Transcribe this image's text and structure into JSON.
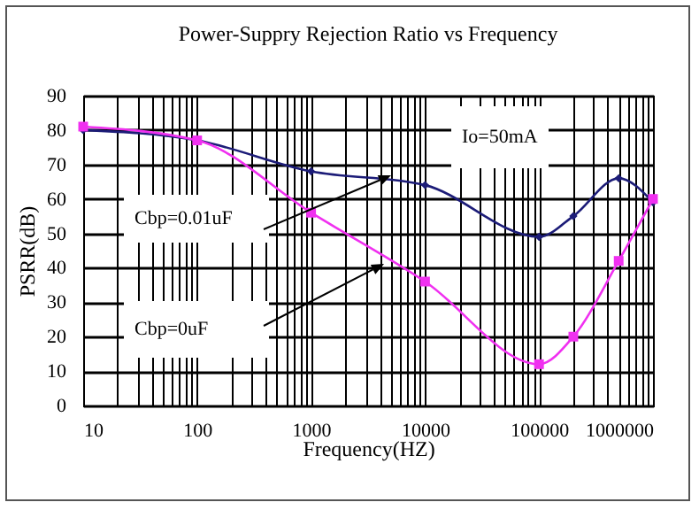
{
  "chart_data": {
    "type": "line",
    "title": "Power-Suppry Rejection Ratio vs Frequency",
    "xlabel": "Frequency(HZ)",
    "ylabel": "PSRR(dB)",
    "x": [
      10,
      100,
      1000,
      10000,
      100000,
      200000,
      500000,
      1000000
    ],
    "series": [
      {
        "color": "#1c1c78",
        "marker": "diamond",
        "values": [
          80,
          77,
          68,
          64,
          49,
          55,
          66,
          59
        ]
      },
      {
        "color": "#f030f0",
        "marker": "square",
        "values": [
          81,
          77,
          56,
          36,
          12,
          20,
          42,
          60
        ]
      }
    ],
    "xlim": [
      10,
      1000000
    ],
    "xticks": [
      10,
      {
        "value": 20,
        "label": null
      },
      {
        "value": 30,
        "label": null
      },
      {
        "value": 40,
        "label": null
      },
      {
        "value": 50,
        "label": null
      },
      {
        "value": 60,
        "label": null
      },
      {
        "value": 70,
        "label": null
      },
      {
        "value": 80,
        "label": null
      },
      {
        "value": 90,
        "label": null
      },
      100,
      {
        "value": 200,
        "label": null
      },
      {
        "value": 300,
        "label": null
      },
      {
        "value": 400,
        "label": null
      },
      {
        "value": 500,
        "label": null
      },
      {
        "value": 600,
        "label": null
      },
      {
        "value": 700,
        "label": null
      },
      {
        "value": 800,
        "label": null
      },
      {
        "value": 900,
        "label": null
      },
      1000,
      {
        "value": 2000,
        "label": null
      },
      {
        "value": 3000,
        "label": null
      },
      {
        "value": 4000,
        "label": null
      },
      {
        "value": 5000,
        "label": null
      },
      {
        "value": 6000,
        "label": null
      },
      {
        "value": 7000,
        "label": null
      },
      {
        "value": 8000,
        "label": null
      },
      {
        "value": 9000,
        "label": null
      },
      10000,
      {
        "value": 20000,
        "label": null
      },
      {
        "value": 30000,
        "label": null
      },
      {
        "value": 40000,
        "label": null
      },
      {
        "value": 50000,
        "label": null
      },
      {
        "value": 60000,
        "label": null
      },
      {
        "value": 70000,
        "label": null
      },
      {
        "value": 80000,
        "label": null
      },
      {
        "value": 90000,
        "label": null
      },
      100000,
      {
        "value": 200000,
        "label": null
      },
      {
        "value": 300000,
        "label": null
      },
      {
        "value": 400000,
        "label": null
      },
      {
        "value": 500000,
        "label": null
      },
      {
        "value": 600000,
        "label": null
      },
      {
        "value": 700000,
        "label": null
      },
      {
        "value": 800000,
        "label": null
      },
      {
        "value": 900000,
        "label": null
      },
      1000000
    ],
    "ylim": [
      0,
      90
    ],
    "yticks": [
      0,
      10,
      20,
      30,
      40,
      50,
      60,
      70,
      80,
      90
    ],
    "log": "x",
    "grid": true,
    "line_style": "solid",
    "annotations": [
      "Io=50mA",
      "Cbp=0.01uF",
      "Cbp=0uF"
    ]
  }
}
